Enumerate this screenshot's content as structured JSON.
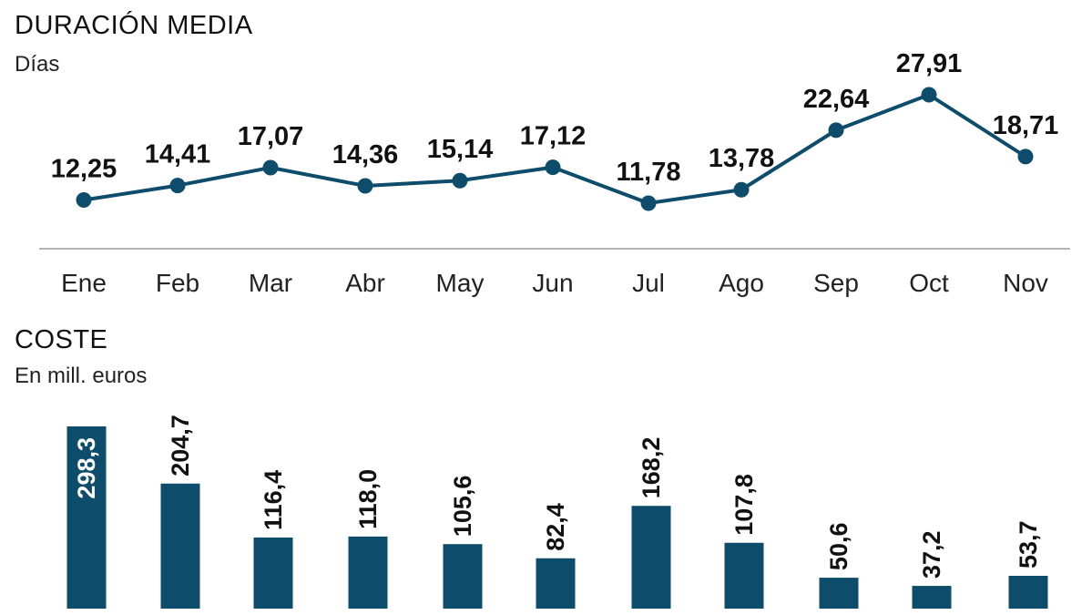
{
  "chart_data": [
    {
      "type": "line",
      "title": "DURACIÓN MEDIA",
      "subtitle": "Días",
      "categories": [
        "Ene",
        "Feb",
        "Mar",
        "Abr",
        "May",
        "Jun",
        "Jul",
        "Ago",
        "Sep",
        "Oct",
        "Nov"
      ],
      "values": [
        12.25,
        14.41,
        17.07,
        14.36,
        15.14,
        17.12,
        11.78,
        13.78,
        22.64,
        27.91,
        18.71
      ],
      "labels": [
        "12,25",
        "14,41",
        "17,07",
        "14,36",
        "15,14",
        "17,12",
        "11,78",
        "13,78",
        "22,64",
        "27,91",
        "18,71"
      ],
      "color": "#0d4d6b",
      "grid": false,
      "legend": "none"
    },
    {
      "type": "bar",
      "title": "COSTE",
      "subtitle": "En mill. euros",
      "categories": [
        "Ene",
        "Feb",
        "Mar",
        "Abr",
        "May",
        "Jun",
        "Jul",
        "Ago",
        "Sep",
        "Oct",
        "Nov"
      ],
      "values": [
        298.3,
        204.7,
        116.4,
        118.0,
        105.6,
        82.4,
        168.2,
        107.8,
        50.6,
        37.2,
        53.7
      ],
      "labels": [
        "298,3",
        "204,7",
        "116,4",
        "118,0",
        "105,6",
        "82,4",
        "168,2",
        "107,8",
        "50,6",
        "37,2",
        "53,7"
      ],
      "color": "#0d4d6b",
      "grid": false,
      "legend": "none"
    }
  ]
}
